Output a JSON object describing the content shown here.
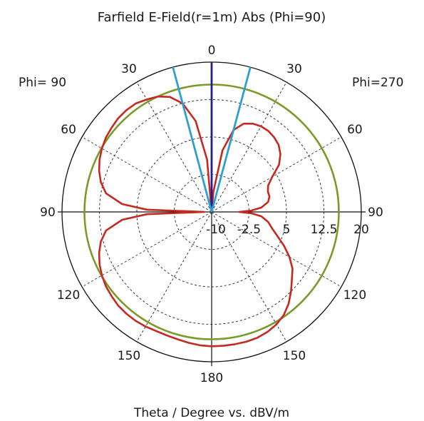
{
  "chart_data": {
    "type": "polar",
    "title": "Farfield E-Field(r=1m) Abs (Phi=90)",
    "xlabel": "Theta / Degree vs. dBV/m",
    "left_label": "Phi= 90",
    "right_label": "Phi=270",
    "angle_tick_labels": [
      {
        "angle": 0,
        "text": "0"
      },
      {
        "angle": -30,
        "text": "30"
      },
      {
        "angle": 30,
        "text": "30"
      },
      {
        "angle": -60,
        "text": "60"
      },
      {
        "angle": 60,
        "text": "60"
      },
      {
        "angle": -90,
        "text": "90"
      },
      {
        "angle": 90,
        "text": "90"
      },
      {
        "angle": -120,
        "text": "120"
      },
      {
        "angle": 120,
        "text": "120"
      },
      {
        "angle": -150,
        "text": "150"
      },
      {
        "angle": 150,
        "text": "150"
      },
      {
        "angle": 180,
        "text": "180"
      }
    ],
    "radial_ticks": [
      "-10",
      "-2.5",
      "5",
      "12.5",
      "20"
    ],
    "rlim": [
      -10,
      20
    ],
    "dashed_circles": [
      -2.5,
      5,
      12.5
    ],
    "dashed_spokes_deg": [
      30,
      60,
      120,
      150
    ],
    "series": [
      {
        "color": "#c42a22",
        "theta": [
          0,
          5,
          10,
          15,
          20,
          25,
          30,
          35,
          40,
          45,
          50,
          55,
          60,
          65,
          70,
          75,
          80,
          85,
          88,
          90,
          92,
          95,
          100,
          105,
          110,
          115,
          120,
          125,
          130,
          135,
          140,
          145,
          150,
          155,
          160,
          165,
          170,
          175,
          180
        ],
        "values": [
          -10,
          0.5,
          8.5,
          12.5,
          14.5,
          15.5,
          16.0,
          16.5,
          16.6,
          16.5,
          16.2,
          15.9,
          15.4,
          14.8,
          14.0,
          13.0,
          11.5,
          8.0,
          3.0,
          -8.5,
          3.0,
          8.0,
          11.5,
          13.0,
          14.0,
          14.8,
          15.4,
          15.9,
          16.2,
          16.5,
          16.6,
          16.6,
          16.5,
          16.3,
          16.3,
          16.4,
          16.6,
          16.8,
          16.9
        ],
        "values_left": [
          -10,
          -6.0,
          2.5,
          7.0,
          8.8,
          9.5,
          9.8,
          9.8,
          9.5,
          9.0,
          8.0,
          6.5,
          4.0,
          2.5,
          2.0,
          2.0,
          1.5,
          0.0,
          -2.0,
          -4.5,
          -2.0,
          0.0,
          1.5,
          2.5,
          4.0,
          6.0,
          8.0,
          9.8,
          11.0,
          12.5,
          14.0,
          15.2,
          16.0,
          16.5,
          16.8,
          16.9,
          16.9,
          16.9,
          16.9
        ]
      },
      {
        "color": "#7a9a2a",
        "theta": "full circle",
        "values": [
          15.5
        ]
      }
    ],
    "markers": [
      {
        "color": "#1f1f8f",
        "theta": 0,
        "description": "main lobe direction"
      },
      {
        "color": "#2e9fd1",
        "theta": -15,
        "description": "beam edge"
      },
      {
        "color": "#2e9fd1",
        "theta": 15,
        "description": "beam edge"
      }
    ]
  }
}
